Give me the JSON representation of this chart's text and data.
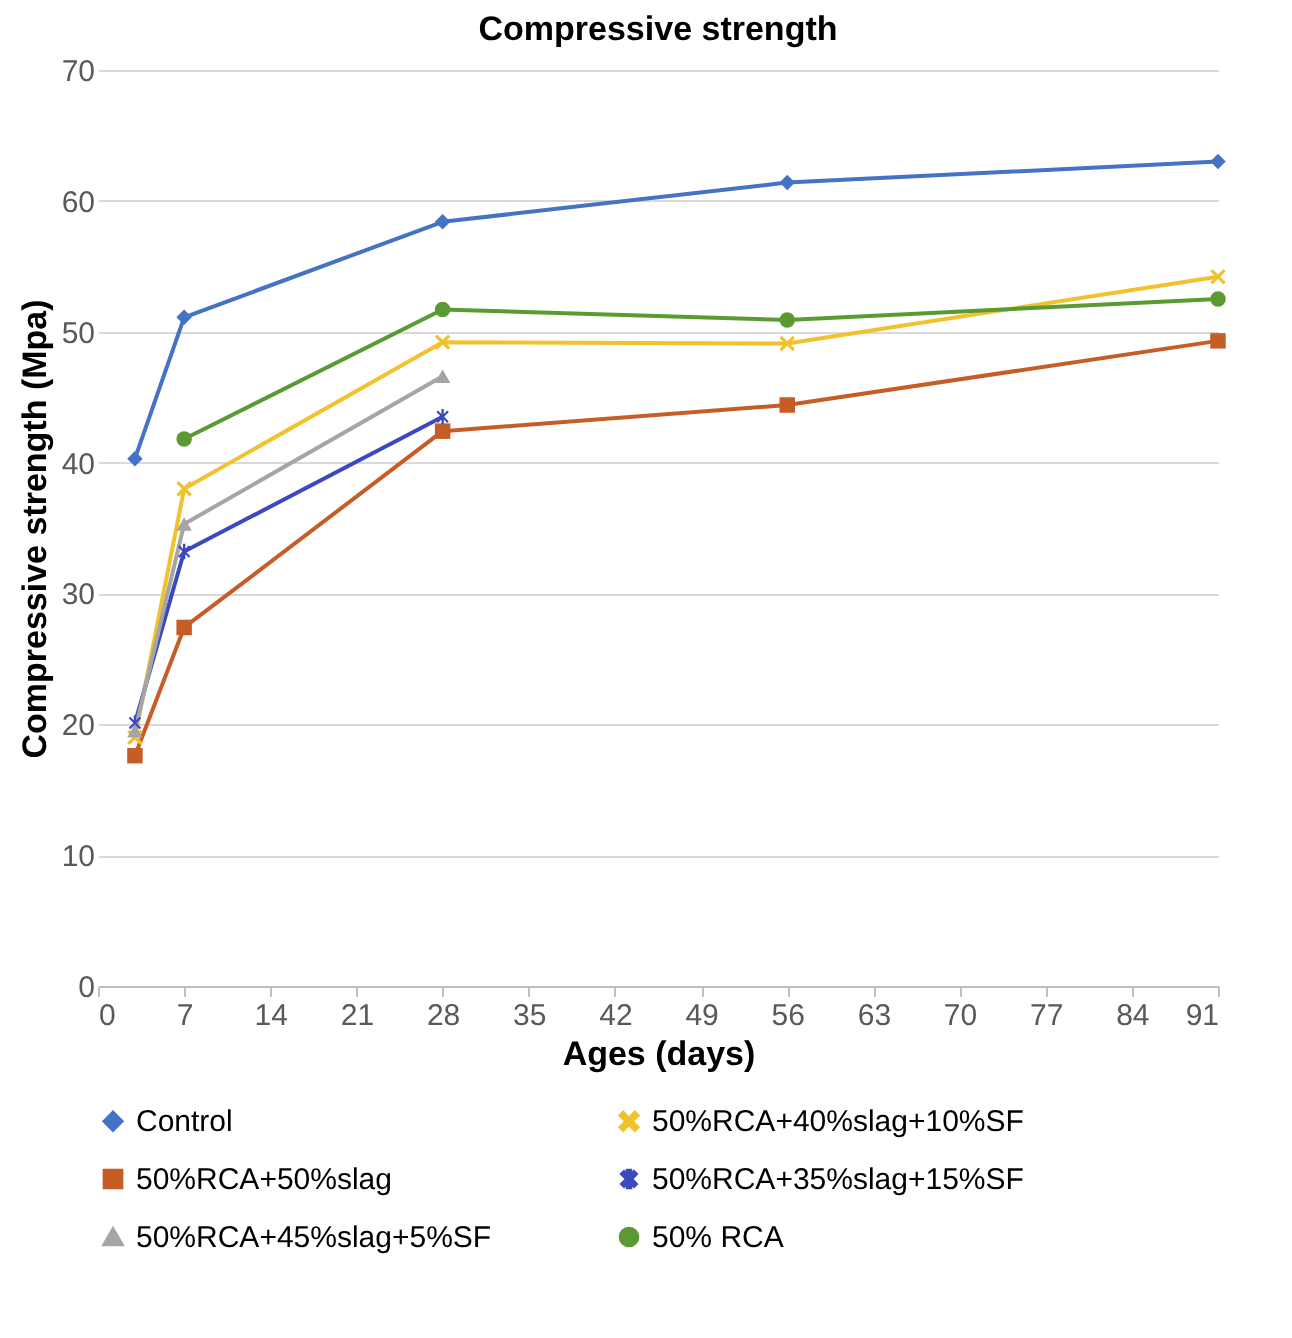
{
  "chart_data": {
    "type": "line",
    "title": "Compressive strength",
    "xlabel": "Ages (days)",
    "ylabel": "Compressive strength (Mpa)",
    "x": [
      3,
      7,
      28,
      56,
      91
    ],
    "series": [
      {
        "name": "Control",
        "color": "#4472c4",
        "marker": "diamond",
        "values": [
          40.3,
          51.1,
          58.4,
          61.4,
          63.0
        ]
      },
      {
        "name": "50%RCA+40%slag+10%SF",
        "color": "#f2c12e",
        "marker": "cross",
        "values": [
          19.0,
          38.0,
          49.2,
          49.1,
          54.2
        ]
      },
      {
        "name": "50%RCA+50%slag",
        "color": "#c65d27",
        "marker": "square",
        "values": [
          17.6,
          27.4,
          42.4,
          44.4,
          49.3
        ]
      },
      {
        "name": "50%RCA+35%slag+15%SF",
        "color": "#3c48c0",
        "marker": "star",
        "values": [
          20.1,
          33.2,
          43.5,
          null,
          null
        ]
      },
      {
        "name": "50%RCA+45%slag+5%SF",
        "color": "#a5a5a5",
        "marker": "triangle",
        "values": [
          19.5,
          35.3,
          46.6,
          null,
          null
        ]
      },
      {
        "name": "50% RCA",
        "color": "#5b9a32",
        "marker": "circle",
        "values": [
          null,
          41.8,
          51.7,
          50.9,
          52.5
        ]
      }
    ],
    "xlim": [
      0,
      91
    ],
    "xticks": [
      0,
      7,
      14,
      21,
      28,
      35,
      42,
      49,
      56,
      63,
      70,
      77,
      84,
      91
    ],
    "ylim": [
      0,
      70
    ],
    "yticks": [
      0,
      10,
      20,
      30,
      40,
      50,
      60,
      70
    ],
    "grid": "y",
    "legend": "bottom",
    "line_style": "solid"
  }
}
